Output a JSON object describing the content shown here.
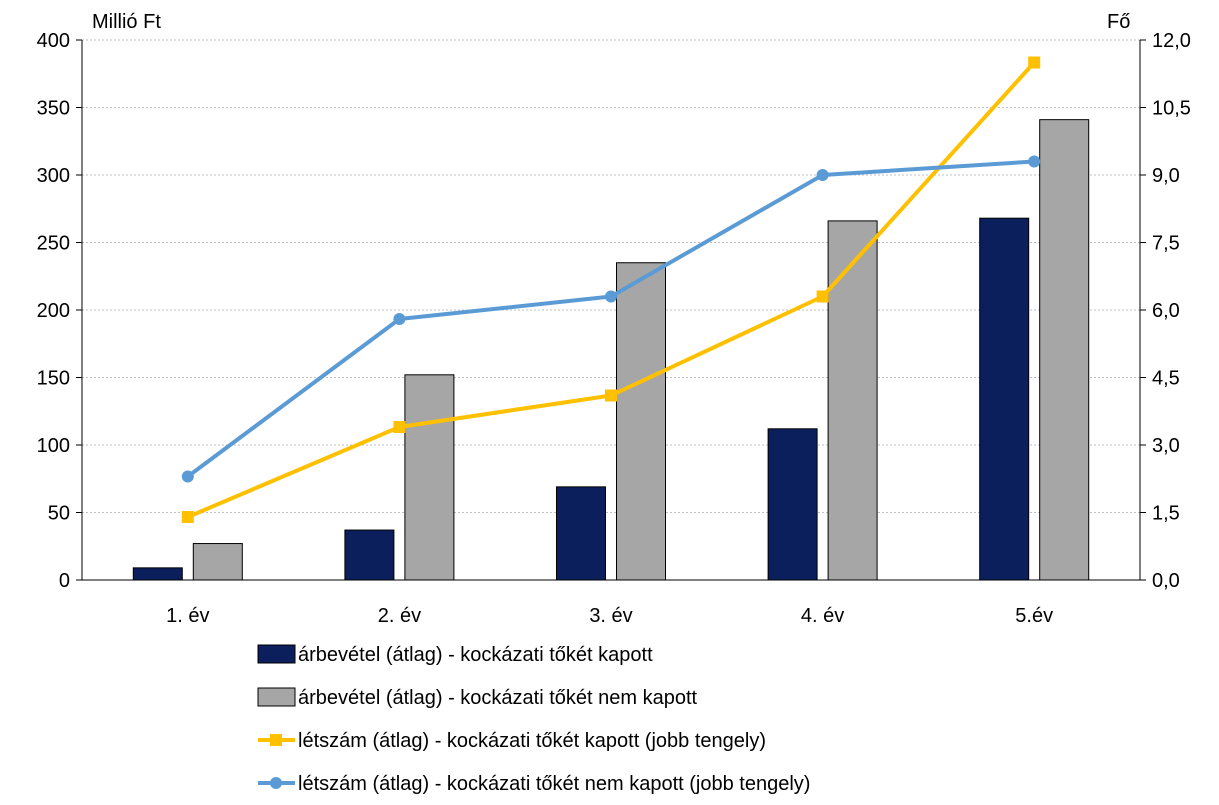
{
  "chart_data": {
    "type": "bar",
    "categories": [
      "1. év",
      "2. év",
      "3. év",
      "4. év",
      "5.év"
    ],
    "left_axis": {
      "unit_label": "Millió Ft",
      "ylim": [
        0,
        400
      ],
      "ticks": [
        "0",
        "50",
        "100",
        "150",
        "200",
        "250",
        "300",
        "350",
        "400"
      ]
    },
    "right_axis": {
      "unit_label": "Fő",
      "ylim": [
        0,
        12
      ],
      "ticks": [
        "0,0",
        "1,5",
        "3,0",
        "4,5",
        "6,0",
        "7,5",
        "9,0",
        "10,5",
        "12,0"
      ]
    },
    "grid": true,
    "legend_position": "bottom",
    "series": [
      {
        "name": "árbevétel (átlag) - kockázati tőkét kapott",
        "kind": "bar",
        "axis": "left",
        "color": "#0b1f5c",
        "values": [
          9,
          37,
          69,
          112,
          268
        ]
      },
      {
        "name": "árbevétel (átlag) - kockázati tőkét nem kapott",
        "kind": "bar",
        "axis": "left",
        "color": "#a6a6a6",
        "values": [
          27,
          152,
          235,
          266,
          341
        ]
      },
      {
        "name": "létszám (átlag) - kockázati tőkét kapott (jobb tengely)",
        "kind": "line",
        "marker": "square",
        "axis": "right",
        "color": "#ffc000",
        "values": [
          1.4,
          3.4,
          4.1,
          6.3,
          11.5
        ]
      },
      {
        "name": "létszám (átlag) - kockázati tőkét nem kapott (jobb tengely)",
        "kind": "line",
        "marker": "circle",
        "axis": "right",
        "color": "#5b9bd5",
        "values": [
          2.3,
          5.8,
          6.3,
          9.0,
          9.3
        ]
      }
    ]
  }
}
